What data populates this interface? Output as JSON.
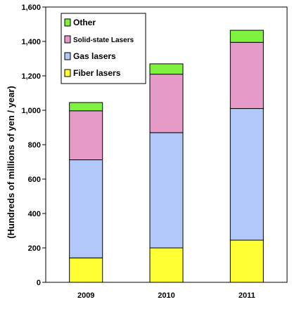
{
  "chart_data": {
    "type": "bar",
    "stacked": true,
    "categories": [
      "2009",
      "2010",
      "2011"
    ],
    "series": [
      {
        "name": "Fiber lasers",
        "color": "#ffff33",
        "values": [
          142,
          200,
          245
        ]
      },
      {
        "name": "Gas lasers",
        "color": "#b3c8fa",
        "values": [
          570,
          670,
          765
        ]
      },
      {
        "name": "Solid-state Lasers",
        "color": "#e59ac8",
        "values": [
          285,
          340,
          385
        ]
      },
      {
        "name": "Other",
        "color": "#7ff23f",
        "values": [
          48,
          60,
          70
        ]
      }
    ],
    "legend_order": [
      "Other",
      "Solid-state Lasers",
      "Gas lasers",
      "Fiber lasers"
    ],
    "legend_position": "top-left",
    "title": "",
    "xlabel": "",
    "ylabel": "(Hundreds of millions of yen / year)",
    "ylim": [
      0,
      1600
    ],
    "yticks": [
      0,
      200,
      400,
      600,
      800,
      1000,
      1200,
      1400,
      1600
    ],
    "ytick_labels": [
      "0",
      "200",
      "400",
      "600",
      "800",
      "1,000",
      "1,200",
      "1,400",
      "1,600"
    ],
    "grid": false
  }
}
